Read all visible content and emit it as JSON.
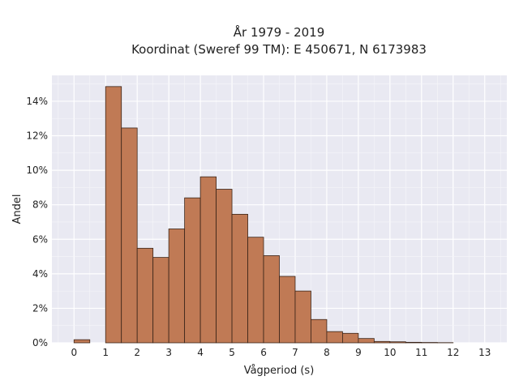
{
  "chart_data": {
    "type": "bar",
    "title_line1": "År 1979 - 2019",
    "title_line2": "Koordinat (Sweref 99 TM): E 450671, N 6173983",
    "xlabel": "Vågperiod (s)",
    "ylabel": "Andel",
    "bin_width": 0.5,
    "bins": [
      {
        "start": 0.0,
        "value": 0.18
      },
      {
        "start": 1.0,
        "value": 14.85
      },
      {
        "start": 1.5,
        "value": 12.45
      },
      {
        "start": 2.0,
        "value": 5.48
      },
      {
        "start": 2.5,
        "value": 4.95
      },
      {
        "start": 3.0,
        "value": 6.6
      },
      {
        "start": 3.5,
        "value": 8.4
      },
      {
        "start": 4.0,
        "value": 9.62
      },
      {
        "start": 4.5,
        "value": 8.9
      },
      {
        "start": 5.0,
        "value": 7.45
      },
      {
        "start": 5.5,
        "value": 6.12
      },
      {
        "start": 6.0,
        "value": 5.05
      },
      {
        "start": 6.5,
        "value": 3.85
      },
      {
        "start": 7.0,
        "value": 3.0
      },
      {
        "start": 7.5,
        "value": 1.35
      },
      {
        "start": 8.0,
        "value": 0.65
      },
      {
        "start": 8.5,
        "value": 0.55
      },
      {
        "start": 9.0,
        "value": 0.25
      },
      {
        "start": 9.5,
        "value": 0.08
      },
      {
        "start": 10.0,
        "value": 0.06
      },
      {
        "start": 10.5,
        "value": 0.03
      },
      {
        "start": 11.0,
        "value": 0.02
      },
      {
        "start": 11.5,
        "value": 0.01
      }
    ],
    "xlim": [
      -0.7,
      13.7
    ],
    "ylim": [
      0,
      15.5
    ],
    "x_ticks": [
      "0",
      "1",
      "2",
      "3",
      "4",
      "5",
      "6",
      "7",
      "8",
      "9",
      "10",
      "11",
      "12",
      "13"
    ],
    "y_ticks": [
      {
        "value": 0,
        "label": "0%"
      },
      {
        "value": 2,
        "label": "2%"
      },
      {
        "value": 4,
        "label": "4%"
      },
      {
        "value": 6,
        "label": "6%"
      },
      {
        "value": 8,
        "label": "8%"
      },
      {
        "value": 10,
        "label": "10%"
      },
      {
        "value": 12,
        "label": "12%"
      },
      {
        "value": 14,
        "label": "14%"
      }
    ],
    "grid": true,
    "bar_color": "#c07a55",
    "bar_edge_color": "#3a2418",
    "plot_background": "#e9e9f2"
  }
}
